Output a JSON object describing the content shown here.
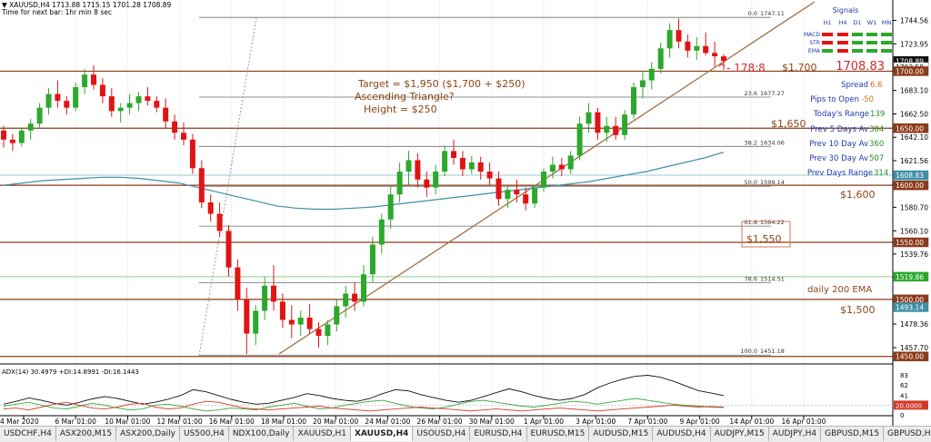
{
  "header": {
    "symbol_line": "▼ XAUUSD,H4  1713.88 1715.15 1701.28 1708.89",
    "timer_line": "Time for next bar: 1hr min 8 sec"
  },
  "colors": {
    "bull": "#2ca82c",
    "bear": "#e01414",
    "level": "#8b3a1a",
    "trend": "#a07045",
    "ema": "#3f8fa6",
    "panel_text": "#1f3aa8",
    "orange": "#e36c09",
    "brown_text": "#8b4513",
    "red_text": "#d22a2a"
  },
  "chart_data": {
    "type": "candlestick",
    "symbol": "XAUUSD",
    "timeframe": "H4",
    "ylim": [
      1445,
      1760
    ],
    "price_axis_ticks": [
      "1744.56",
      "1723.95",
      "1703.35",
      "1683.10",
      "1662.50",
      "1642.10",
      "1621.56",
      "1601.30",
      "1580.70",
      "1560.10",
      "1539.76",
      "1519.20",
      "1498.93",
      "1478.36",
      "1457.70"
    ],
    "highlight_labels": [
      {
        "text": "1708.89",
        "value": 1708.89,
        "bg": "#111111",
        "fg": "#ffffff"
      },
      {
        "text": "1703.58",
        "value": 1703.58,
        "bg": "#ffffff",
        "fg": "#000000"
      },
      {
        "text": "1700.00",
        "value": 1700.0,
        "bg": "#8b3a1a",
        "fg": "#ffffff"
      },
      {
        "text": "1650.00",
        "value": 1650.0,
        "bg": "#8b3a1a",
        "fg": "#ffffff"
      },
      {
        "text": "1608.83",
        "value": 1608.83,
        "bg": "#3f8fa6",
        "fg": "#ffffff"
      },
      {
        "text": "1600.00",
        "value": 1600.0,
        "bg": "#8b3a1a",
        "fg": "#ffffff"
      },
      {
        "text": "1550.00",
        "value": 1550.0,
        "bg": "#8b3a1a",
        "fg": "#ffffff"
      },
      {
        "text": "1519.86",
        "value": 1519.86,
        "bg": "#2ca82c",
        "fg": "#ffffff"
      },
      {
        "text": "1500.00",
        "value": 1500.0,
        "bg": "#8b3a1a",
        "fg": "#ffffff"
      },
      {
        "text": "1493.14",
        "value": 1493.14,
        "bg": "#3f8fa6",
        "fg": "#ffffff"
      },
      {
        "text": "1450.00",
        "value": 1450.0,
        "bg": "#8b3a1a",
        "fg": "#ffffff"
      }
    ],
    "horizontal_levels": [
      1700,
      1650,
      1600,
      1550,
      1500,
      1450
    ],
    "fib_levels": [
      {
        "label": "0.0",
        "price": "1747.11",
        "value": 1747.11
      },
      {
        "label": "23.6",
        "price": "1677.27",
        "value": 1677.27
      },
      {
        "label": "38.2",
        "price": "1634.06",
        "value": 1634.06
      },
      {
        "label": "50.0",
        "price": "1599.14",
        "value": 1599.14
      },
      {
        "label": "61.8",
        "price": "1564.22",
        "value": 1564.22
      },
      {
        "label": "78.6",
        "price": "1514.51",
        "value": 1514.51
      },
      {
        "label": "100.0",
        "price": "1451.18",
        "value": 1451.18
      }
    ],
    "time_labels": [
      "4 Mar 2020",
      "6 Mar 01:00",
      "10 Mar 01:00",
      "12 Mar 01:00",
      "16 Mar 01:00",
      "18 Mar 01:00",
      "20 Mar 01:00",
      "24 Mar 01:00",
      "26 Mar 01:00",
      "30 Mar 01:00",
      "1 Apr 01:00",
      "3 Apr 01:00",
      "7 Apr 01:00",
      "9 Apr 01:00",
      "14 Apr 01:00",
      "16 Apr 01:00"
    ],
    "candles": [
      [
        1648,
        1652,
        1633,
        1640
      ],
      [
        1640,
        1645,
        1630,
        1637
      ],
      [
        1637,
        1650,
        1634,
        1648
      ],
      [
        1648,
        1658,
        1640,
        1654
      ],
      [
        1654,
        1672,
        1650,
        1668
      ],
      [
        1668,
        1685,
        1662,
        1680
      ],
      [
        1680,
        1692,
        1668,
        1674
      ],
      [
        1674,
        1678,
        1662,
        1668
      ],
      [
        1668,
        1690,
        1665,
        1686
      ],
      [
        1686,
        1702,
        1680,
        1697
      ],
      [
        1697,
        1705,
        1684,
        1688
      ],
      [
        1688,
        1694,
        1672,
        1678
      ],
      [
        1678,
        1685,
        1660,
        1665
      ],
      [
        1665,
        1672,
        1655,
        1668
      ],
      [
        1668,
        1680,
        1662,
        1672
      ],
      [
        1672,
        1682,
        1665,
        1678
      ],
      [
        1678,
        1686,
        1670,
        1674
      ],
      [
        1674,
        1678,
        1664,
        1668
      ],
      [
        1668,
        1676,
        1650,
        1656
      ],
      [
        1656,
        1662,
        1640,
        1646
      ],
      [
        1646,
        1655,
        1635,
        1640
      ],
      [
        1640,
        1645,
        1610,
        1615
      ],
      [
        1615,
        1622,
        1580,
        1585
      ],
      [
        1585,
        1592,
        1568,
        1575
      ],
      [
        1575,
        1585,
        1555,
        1560
      ],
      [
        1560,
        1565,
        1520,
        1528
      ],
      [
        1528,
        1535,
        1490,
        1500
      ],
      [
        1500,
        1510,
        1452,
        1470
      ],
      [
        1470,
        1495,
        1460,
        1490
      ],
      [
        1490,
        1520,
        1482,
        1512
      ],
      [
        1512,
        1530,
        1490,
        1498
      ],
      [
        1498,
        1505,
        1475,
        1482
      ],
      [
        1482,
        1495,
        1466,
        1478
      ],
      [
        1478,
        1490,
        1468,
        1484
      ],
      [
        1484,
        1496,
        1470,
        1474
      ],
      [
        1474,
        1480,
        1458,
        1468
      ],
      [
        1468,
        1482,
        1460,
        1478
      ],
      [
        1478,
        1500,
        1472,
        1494
      ],
      [
        1494,
        1512,
        1484,
        1505
      ],
      [
        1505,
        1515,
        1490,
        1498
      ],
      [
        1498,
        1530,
        1494,
        1522
      ],
      [
        1522,
        1555,
        1515,
        1548
      ],
      [
        1548,
        1575,
        1540,
        1570
      ],
      [
        1570,
        1600,
        1562,
        1592
      ],
      [
        1592,
        1620,
        1585,
        1612
      ],
      [
        1612,
        1630,
        1600,
        1622
      ],
      [
        1622,
        1628,
        1598,
        1605
      ],
      [
        1605,
        1612,
        1590,
        1598
      ],
      [
        1598,
        1618,
        1592,
        1612
      ],
      [
        1612,
        1635,
        1608,
        1630
      ],
      [
        1630,
        1640,
        1618,
        1624
      ],
      [
        1624,
        1630,
        1608,
        1614
      ],
      [
        1614,
        1626,
        1610,
        1620
      ],
      [
        1620,
        1625,
        1605,
        1612
      ],
      [
        1612,
        1620,
        1600,
        1606
      ],
      [
        1606,
        1612,
        1582,
        1588
      ],
      [
        1588,
        1600,
        1580,
        1596
      ],
      [
        1596,
        1605,
        1585,
        1592
      ],
      [
        1592,
        1598,
        1578,
        1584
      ],
      [
        1584,
        1600,
        1580,
        1598
      ],
      [
        1598,
        1615,
        1594,
        1612
      ],
      [
        1612,
        1625,
        1606,
        1618
      ],
      [
        1618,
        1624,
        1608,
        1614
      ],
      [
        1614,
        1630,
        1610,
        1626
      ],
      [
        1626,
        1660,
        1622,
        1654
      ],
      [
        1654,
        1672,
        1646,
        1664
      ],
      [
        1664,
        1668,
        1640,
        1646
      ],
      [
        1646,
        1660,
        1638,
        1652
      ],
      [
        1652,
        1660,
        1640,
        1644
      ],
      [
        1644,
        1666,
        1640,
        1662
      ],
      [
        1662,
        1690,
        1658,
        1686
      ],
      [
        1686,
        1700,
        1676,
        1692
      ],
      [
        1692,
        1708,
        1684,
        1702
      ],
      [
        1702,
        1725,
        1698,
        1720
      ],
      [
        1720,
        1742,
        1712,
        1736
      ],
      [
        1736,
        1746,
        1720,
        1726
      ],
      [
        1726,
        1732,
        1712,
        1718
      ],
      [
        1718,
        1730,
        1710,
        1722
      ],
      [
        1722,
        1734,
        1714,
        1716
      ],
      [
        1716,
        1726,
        1704,
        1713
      ],
      [
        1713,
        1715,
        1701,
        1708.89
      ]
    ],
    "ema200": [
      [
        1652,
        1600
      ],
      [
        1668,
        1606
      ],
      [
        1684,
        1606
      ],
      [
        1700,
        1600
      ],
      [
        1716,
        1592
      ],
      [
        1732,
        1584
      ],
      [
        1748,
        1580
      ],
      [
        1764,
        1580
      ],
      [
        1780,
        1584
      ],
      [
        1796,
        1590
      ],
      [
        1812,
        1596
      ],
      [
        1830,
        1604
      ],
      [
        1845,
        1614
      ],
      [
        1860,
        1628
      ],
      [
        1875,
        1640
      ]
    ],
    "indicator": {
      "label": "ADX(14) 30.4979 +DI:14.8991 -DI:16.1443",
      "ticks": [
        "83",
        "62",
        "41",
        "20",
        "0"
      ],
      "level_label": "20.0000"
    }
  },
  "signals": {
    "title": "Signals",
    "timeframes": [
      "H1",
      "H4",
      "D1",
      "W1",
      "MN"
    ],
    "rows": [
      {
        "name": "MACD",
        "colors": [
          "#e01414",
          "#e01414",
          "#2ca82c",
          "#2ca82c",
          "#2ca82c"
        ]
      },
      {
        "name": "STR",
        "colors": [
          "#e01414",
          "#e01414",
          "#2ca82c",
          "#2ca82c",
          "#2ca82c"
        ]
      },
      {
        "name": "EMA",
        "colors": [
          "#2ca82c",
          "#e01414",
          "#2ca82c",
          "#2ca82c",
          "#2ca82c"
        ]
      }
    ]
  },
  "info_panel": {
    "price": "1708.83",
    "countdown": "^- 178:8",
    "spread_label": "Spread",
    "spread_value": "6.6",
    "pips_label": "Pips to Open",
    "pips_value": "-50",
    "today_label": "Today's Range",
    "today_value": "139",
    "prev5_label": "Prev 5 Days Av",
    "prev5_value": "384",
    "prev10_label": "Prev 10 Day Av",
    "prev10_value": "360",
    "prev30_label": "Prev 30 Day Av",
    "prev30_value": "507",
    "prevdays_label": "Prev Days Range",
    "prevdays_value": "314"
  },
  "annotations": {
    "target": "Target = $1,950 ($1,700 + $250)",
    "pattern": "Ascending Triangle?",
    "height": "Height = $250",
    "level_1700": "$1,700",
    "level_1650": "$1,650",
    "level_1600": "$1,600",
    "level_1550": "$1,550",
    "ema_note": "daily 200 EMA",
    "level_1500": "$1,500"
  },
  "tabs": [
    {
      "label": "USDCHF,H4",
      "active": false
    },
    {
      "label": "ASX200,M15",
      "active": false
    },
    {
      "label": "ASX200,Daily",
      "active": false
    },
    {
      "label": "US500,H4",
      "active": false
    },
    {
      "label": "NDX100,Daily",
      "active": false
    },
    {
      "label": "XAUUSD,H1",
      "active": false
    },
    {
      "label": "XAUUSD,H4",
      "active": true
    },
    {
      "label": "USOUSD,H4",
      "active": false
    },
    {
      "label": "EURUSD,H4",
      "active": false
    },
    {
      "label": "EURUSD,M15",
      "active": false
    },
    {
      "label": "AUDUSD,M15",
      "active": false
    },
    {
      "label": "AUDUSD,H4",
      "active": false
    },
    {
      "label": "AUDJPY,M15",
      "active": false
    },
    {
      "label": "AUDJPY,H4",
      "active": false
    },
    {
      "label": "GBPUSD,M15",
      "active": false
    },
    {
      "label": "GBPUSD,H4",
      "active": false
    },
    {
      "label": "NZDUSD,H1",
      "active": false
    },
    {
      "label": "NZDUSD,H4",
      "active": false
    }
  ]
}
